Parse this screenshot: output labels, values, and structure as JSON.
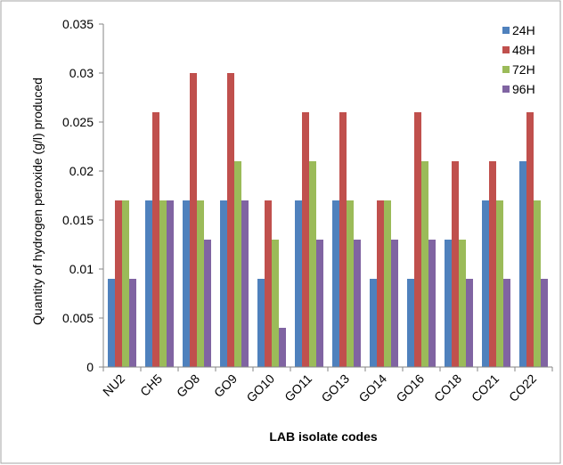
{
  "chart_data": {
    "type": "bar",
    "title": "",
    "xlabel": "LAB isolate codes",
    "ylabel": "Quantity of hydrogen peroxide (g/l) produced",
    "ylim": [
      0,
      0.035
    ],
    "yticks": [
      "0",
      "0.005",
      "0.01",
      "0.015",
      "0.02",
      "0.025",
      "0.03",
      "0.035"
    ],
    "ytick_values": [
      0,
      0.005,
      0.01,
      0.015,
      0.02,
      0.025,
      0.03,
      0.035
    ],
    "grid": false,
    "legend_position": "top-right",
    "categories": [
      "NU2",
      "CH5",
      "GO8",
      "GO9",
      "GO10",
      "GO11",
      "GO13",
      "GO14",
      "GO16",
      "CO18",
      "CO21",
      "CO22"
    ],
    "series": [
      {
        "name": "24H",
        "color": "#4f81bd",
        "values": [
          0.009,
          0.017,
          0.017,
          0.017,
          0.009,
          0.017,
          0.017,
          0.009,
          0.009,
          0.013,
          0.017,
          0.021
        ]
      },
      {
        "name": "48H",
        "color": "#c0504d",
        "values": [
          0.017,
          0.026,
          0.03,
          0.03,
          0.017,
          0.026,
          0.026,
          0.017,
          0.026,
          0.021,
          0.021,
          0.026
        ]
      },
      {
        "name": "72H",
        "color": "#9bbb59",
        "values": [
          0.017,
          0.017,
          0.017,
          0.021,
          0.013,
          0.021,
          0.017,
          0.017,
          0.021,
          0.013,
          0.017,
          0.017
        ]
      },
      {
        "name": "96H",
        "color": "#8064a2",
        "values": [
          0.009,
          0.017,
          0.013,
          0.017,
          0.004,
          0.013,
          0.013,
          0.013,
          0.013,
          0.009,
          0.009,
          0.009
        ]
      }
    ]
  }
}
